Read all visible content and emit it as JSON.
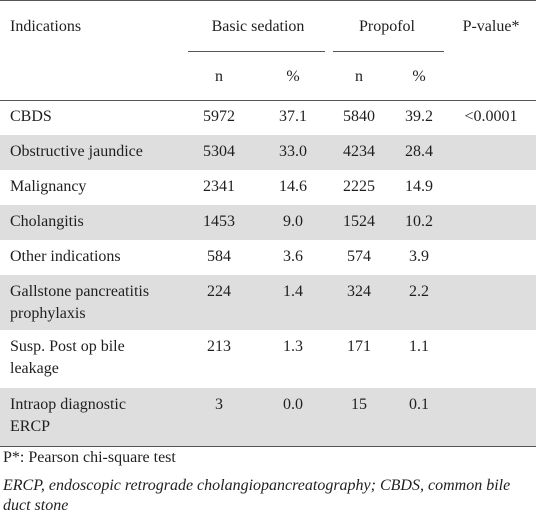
{
  "headers": {
    "indications": "Indications",
    "basic_sedation": "Basic sedation",
    "propofol": "Propofol",
    "pvalue": "P-value*",
    "n1": "n",
    "pct1": "%",
    "n2": "n",
    "pct2": "%"
  },
  "rows": [
    {
      "label": [
        "CBDS"
      ],
      "n1": "5972",
      "p1": "37.1",
      "n2": "5840",
      "p2": "39.2",
      "pv": "<0.0001"
    },
    {
      "label": [
        "Obstructive jaundice"
      ],
      "n1": "5304",
      "p1": "33.0",
      "n2": "4234",
      "p2": "28.4",
      "pv": ""
    },
    {
      "label": [
        "Malignancy"
      ],
      "n1": "2341",
      "p1": "14.6",
      "n2": "2225",
      "p2": "14.9",
      "pv": ""
    },
    {
      "label": [
        "Cholangitis"
      ],
      "n1": "1453",
      "p1": "9.0",
      "n2": "1524",
      "p2": "10.2",
      "pv": ""
    },
    {
      "label": [
        "Other indications"
      ],
      "n1": "584",
      "p1": "3.6",
      "n2": "574",
      "p2": "3.9",
      "pv": ""
    },
    {
      "label": [
        "Gallstone pancreatitis",
        "prophylaxis"
      ],
      "n1": "224",
      "p1": "1.4",
      "n2": "324",
      "p2": "2.2",
      "pv": ""
    },
    {
      "label": [
        "Susp. Post op bile",
        "leakage"
      ],
      "n1": "213",
      "p1": "1.3",
      "n2": "171",
      "p2": "1.1",
      "pv": ""
    },
    {
      "label": [
        "Intraop diagnostic",
        "ERCP"
      ],
      "n1": "3",
      "p1": "0.0",
      "n2": "15",
      "p2": "0.1",
      "pv": ""
    }
  ],
  "footnote1": "P*: Pearson chi-square test",
  "footnote2": [
    "ERCP, endoscopic retrograde cholangiopancreatography; CBDS, common bile",
    "duct stone"
  ]
}
